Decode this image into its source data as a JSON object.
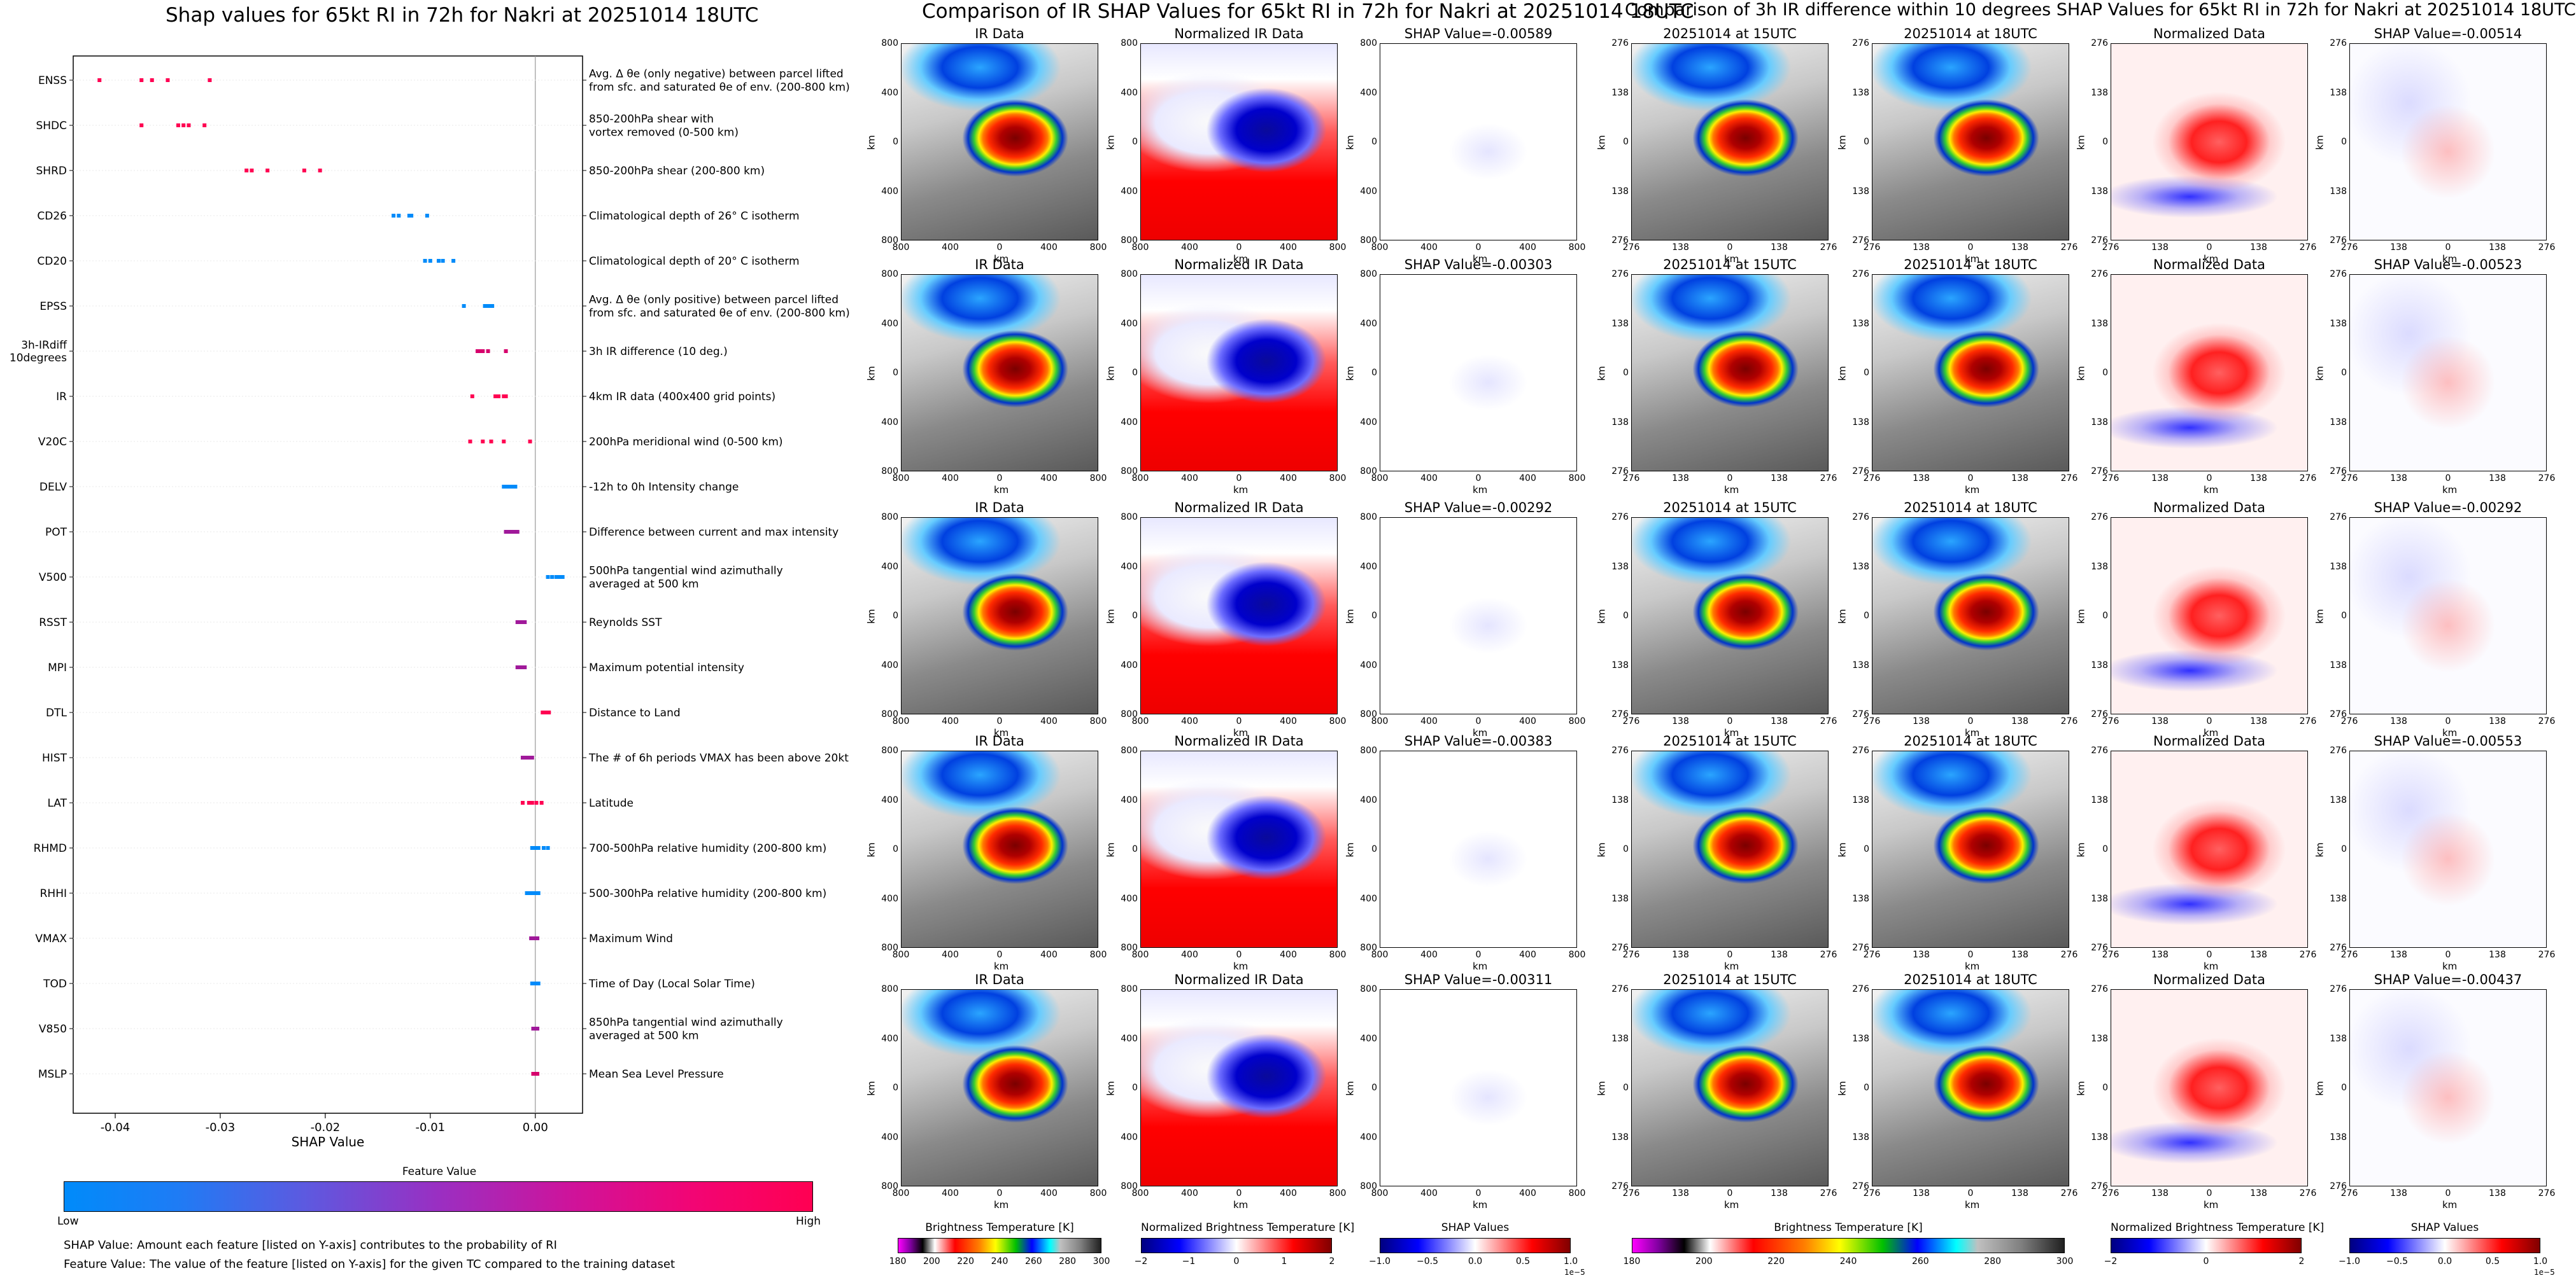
{
  "left": {
    "title": "Shap values for 65kt RI in 72h for Nakri at 20251014 18UTC",
    "xlabel": "SHAP Value",
    "legend_title": "Feature Value",
    "legend_low": "Low",
    "legend_high": "High",
    "footnote_1": "SHAP Value: Amount each feature [listed on Y-axis] contributes to the probability of RI",
    "footnote_2": "Feature Value: The value of the feature [listed on Y-axis] for the given TC compared to the training dataset"
  },
  "chart_data": {
    "type": "scatter",
    "title": "Shap values for 65kt RI in 72h for Nakri at 20251014 18UTC",
    "xlabel": "SHAP Value",
    "xlim": [
      -0.044,
      0.0045
    ],
    "xticks": [
      "-0.04",
      "-0.03",
      "-0.02",
      "-0.01",
      "0.00"
    ],
    "xtick_values": [
      -0.04,
      -0.03,
      -0.02,
      -0.01,
      0.0
    ],
    "features": [
      {
        "name": "ENSS",
        "desc": "Avg. Δ θe (only negative) between parcel lifted\nfrom sfc. and saturated θe of env. (200-800 km)",
        "shap": [
          -0.0415,
          -0.0375,
          -0.0365,
          -0.035,
          -0.031
        ],
        "color": "#ff0052"
      },
      {
        "name": "SHDC",
        "desc": "850-200hPa shear with\nvortex removed (0-500 km)",
        "shap": [
          -0.0375,
          -0.034,
          -0.0335,
          -0.033,
          -0.0315
        ],
        "color": "#ff0052"
      },
      {
        "name": "SHRD",
        "desc": "850-200hPa shear (200-800 km)",
        "shap": [
          -0.0275,
          -0.027,
          -0.0255,
          -0.022,
          -0.0205
        ],
        "color": "#ff0052"
      },
      {
        "name": "CD26",
        "desc": "Climatological depth of 26° C isotherm",
        "shap": [
          -0.0135,
          -0.013,
          -0.012,
          -0.0118,
          -0.0103
        ],
        "color": "#008bfa"
      },
      {
        "name": "CD20",
        "desc": "Climatological depth of 20° C isotherm",
        "shap": [
          -0.0105,
          -0.01,
          -0.0092,
          -0.0088,
          -0.0078
        ],
        "color": "#008bfa"
      },
      {
        "name": "EPSS",
        "desc": "Avg. Δ θe (only positive) between parcel lifted\nfrom sfc. and saturated θe of env. (200-800 km)",
        "shap": [
          -0.0068,
          -0.0048,
          -0.0045,
          -0.0043,
          -0.0041
        ],
        "color": "#008bfa"
      },
      {
        "name": "3h-IRdiff\n10degrees",
        "desc": "3h IR difference (10 deg.)",
        "shap": [
          -0.0055,
          -0.0052,
          -0.005,
          -0.0045,
          -0.0028
        ],
        "color": "#d6006c"
      },
      {
        "name": "IR",
        "desc": "4km IR data (400x400 grid points)",
        "shap": [
          -0.006,
          -0.0038,
          -0.0035,
          -0.003,
          -0.0028
        ],
        "color": "#ff0052"
      },
      {
        "name": "V20C",
        "desc": "200hPa meridional wind (0-500 km)",
        "shap": [
          -0.0062,
          -0.005,
          -0.0042,
          -0.003,
          -0.0005
        ],
        "color": "#ff0052"
      },
      {
        "name": "DELV",
        "desc": "-12h to 0h Intensity change",
        "shap": [
          -0.003,
          -0.0027,
          -0.0024,
          -0.0021,
          -0.0019
        ],
        "color": "#008bfa"
      },
      {
        "name": "POT",
        "desc": "Difference between current and max intensity",
        "shap": [
          -0.0028,
          -0.0025,
          -0.0022,
          -0.002,
          -0.0017
        ],
        "color": "#a0199a"
      },
      {
        "name": "V500",
        "desc": "500hPa tangential wind azimuthally\naveraged at 500 km",
        "shap": [
          0.0012,
          0.0016,
          0.002,
          0.0023,
          0.0026
        ],
        "color": "#008bfa"
      },
      {
        "name": "RSST",
        "desc": "Reynolds SST",
        "shap": [
          -0.0017,
          -0.0015,
          -0.0013,
          -0.0012,
          -0.001
        ],
        "color": "#a0199a"
      },
      {
        "name": "MPI",
        "desc": "Maximum potential intensity",
        "shap": [
          -0.0017,
          -0.0015,
          -0.0013,
          -0.0012,
          -0.001
        ],
        "color": "#a0199a"
      },
      {
        "name": "DTL",
        "desc": "Distance to Land",
        "shap": [
          0.0007,
          0.0009,
          0.0011,
          0.0012,
          0.0013
        ],
        "color": "#ff0052"
      },
      {
        "name": "HIST",
        "desc": "The # of 6h periods VMAX has been above 20kt",
        "shap": [
          -0.0012,
          -0.001,
          -0.0007,
          -0.0005,
          -0.0003
        ],
        "color": "#a0199a"
      },
      {
        "name": "LAT",
        "desc": "Latitude",
        "shap": [
          -0.0012,
          -0.0006,
          -0.0003,
          0.0001,
          0.0006
        ],
        "color": "#ff0052"
      },
      {
        "name": "RHMD",
        "desc": "700-500hPa relative humidity (200-800 km)",
        "shap": [
          -0.0003,
          0.0,
          0.0003,
          0.0008,
          0.0012
        ],
        "color": "#008bfa"
      },
      {
        "name": "RHHI",
        "desc": "500-300hPa relative humidity (200-800 km)",
        "shap": [
          -0.0008,
          -0.0005,
          -0.0002,
          0.0,
          0.0003
        ],
        "color": "#008bfa"
      },
      {
        "name": "VMAX",
        "desc": "Maximum Wind",
        "shap": [
          -0.0004,
          -0.0002,
          0.0,
          0.0002
        ],
        "color": "#a0199a"
      },
      {
        "name": "TOD",
        "desc": "Time of Day (Local Solar Time)",
        "shap": [
          -0.0003,
          -0.0001,
          0.0001,
          0.0003
        ],
        "color": "#008bfa"
      },
      {
        "name": "V850",
        "desc": "850hPa tangential wind azimuthally\naveraged at 500 km",
        "shap": [
          -0.0002,
          0.0,
          0.0002
        ],
        "color": "#a0199a"
      },
      {
        "name": "MSLP",
        "desc": "Mean Sea Level Pressure",
        "shap": [
          -0.0002,
          0.0,
          0.0002
        ],
        "color": "#d6006c"
      }
    ]
  },
  "middle": {
    "title": "Comparison of IR SHAP Values for 65kt RI in 72h for Nakri at 20251014 18UTC",
    "col_titles": [
      "IR Data",
      "Normalized IR Data"
    ],
    "shap_titles": [
      "SHAP Value=-0.00589",
      "SHAP Value=-0.00303",
      "SHAP Value=-0.00292",
      "SHAP Value=-0.00383",
      "SHAP Value=-0.00311"
    ],
    "xticks": [
      "800",
      "400",
      "0",
      "400",
      "800"
    ],
    "yticks": [
      "800",
      "400",
      "0",
      "400",
      "800"
    ],
    "axis_label": "km",
    "colorbars": [
      {
        "label": "Brightness Temperature [K]",
        "ticks": [
          "180",
          "200",
          "220",
          "240",
          "260",
          "280",
          "300"
        ]
      },
      {
        "label": "Normalized Brightness Temperature [K]",
        "ticks": [
          "−2",
          "−1",
          "0",
          "1",
          "2"
        ]
      },
      {
        "label": "SHAP Values",
        "ticks": [
          "−1.0",
          "−0.5",
          "0.0",
          "0.5",
          "1.0"
        ],
        "exponent": "1e−5"
      }
    ]
  },
  "right": {
    "title": "Comparison of 3h IR difference within 10 degrees SHAP Values for 65kt RI in 72h for Nakri at 20251014 18UTC",
    "col_titles": [
      "20251014 at 15UTC",
      "20251014 at 18UTC",
      "Normalized Data"
    ],
    "shap_titles": [
      "SHAP Value=-0.00514",
      "SHAP Value=-0.00523",
      "SHAP Value=-0.00292",
      "SHAP Value=-0.00553",
      "SHAP Value=-0.00437"
    ],
    "xticks": [
      "276",
      "138",
      "0",
      "138",
      "276"
    ],
    "yticks": [
      "276",
      "138",
      "0",
      "138",
      "276"
    ],
    "axis_label": "km",
    "colorbars": [
      {
        "label": "Brightness Temperature [K]",
        "ticks": [
          "180",
          "200",
          "220",
          "240",
          "260",
          "280",
          "300"
        ]
      },
      {
        "label": "Normalized Brightness Temperature [K]",
        "ticks": [
          "−2",
          "0",
          "2"
        ]
      },
      {
        "label": "SHAP Values",
        "ticks": [
          "−1.0",
          "−0.5",
          "0.0",
          "0.5",
          "1.0"
        ],
        "exponent": "1e−5"
      }
    ]
  },
  "colors": {
    "low": "#008bfa",
    "high": "#ff0052",
    "mid": "#a0199a"
  }
}
